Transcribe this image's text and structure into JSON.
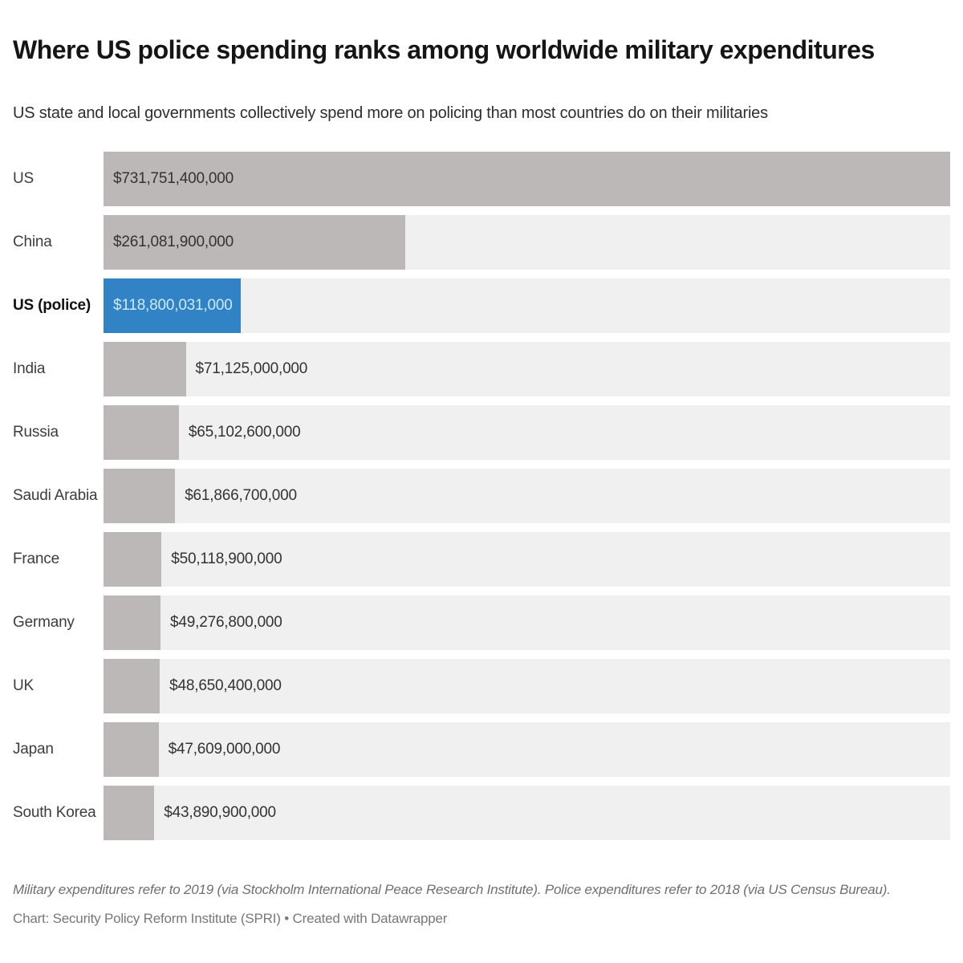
{
  "title": "Where US police spending ranks among worldwide military expenditures",
  "subtitle": "US state and local governments collectively spend more on policing than most countries do on their militaries",
  "chart_data": {
    "type": "bar",
    "orientation": "horizontal",
    "categories": [
      "US",
      "China",
      "US (police)",
      "India",
      "Russia",
      "Saudi Arabia",
      "France",
      "Germany",
      "UK",
      "Japan",
      "South Korea"
    ],
    "values": [
      731751400000,
      261081900000,
      118800031000,
      71125000000,
      65102600000,
      61866700000,
      50118900000,
      49276800000,
      48650400000,
      47609000000,
      43890900000
    ],
    "value_labels": [
      "$731,751,400,000",
      "$261,081,900,000",
      "$118,800,031,000",
      "$71,125,000,000",
      "$65,102,600,000",
      "$61,866,700,000",
      "$50,118,900,000",
      "$49,276,800,000",
      "$48,650,400,000",
      "$47,609,000,000",
      "$43,890,900,000"
    ],
    "xlim": [
      0,
      731751400000
    ],
    "highlight_index": 2,
    "bold_label_index": 2,
    "labels_inside_indices": [
      0,
      1,
      2
    ],
    "grid": false,
    "legend": "none",
    "colors": {
      "bar": "#bcb8b8",
      "highlight_bar": "#3183c6",
      "track": "#f1f0f0",
      "value_text": "#343232",
      "highlight_value_text": "#cde9fb"
    }
  },
  "footer": {
    "note": "Military expenditures refer to 2019 (via Stockholm International Peace Research Institute). Police expenditures refer to 2018 (via US Census Bureau).",
    "credit": "Chart: Security Policy Reform Institute (SPRI) • Created with Datawrapper"
  }
}
